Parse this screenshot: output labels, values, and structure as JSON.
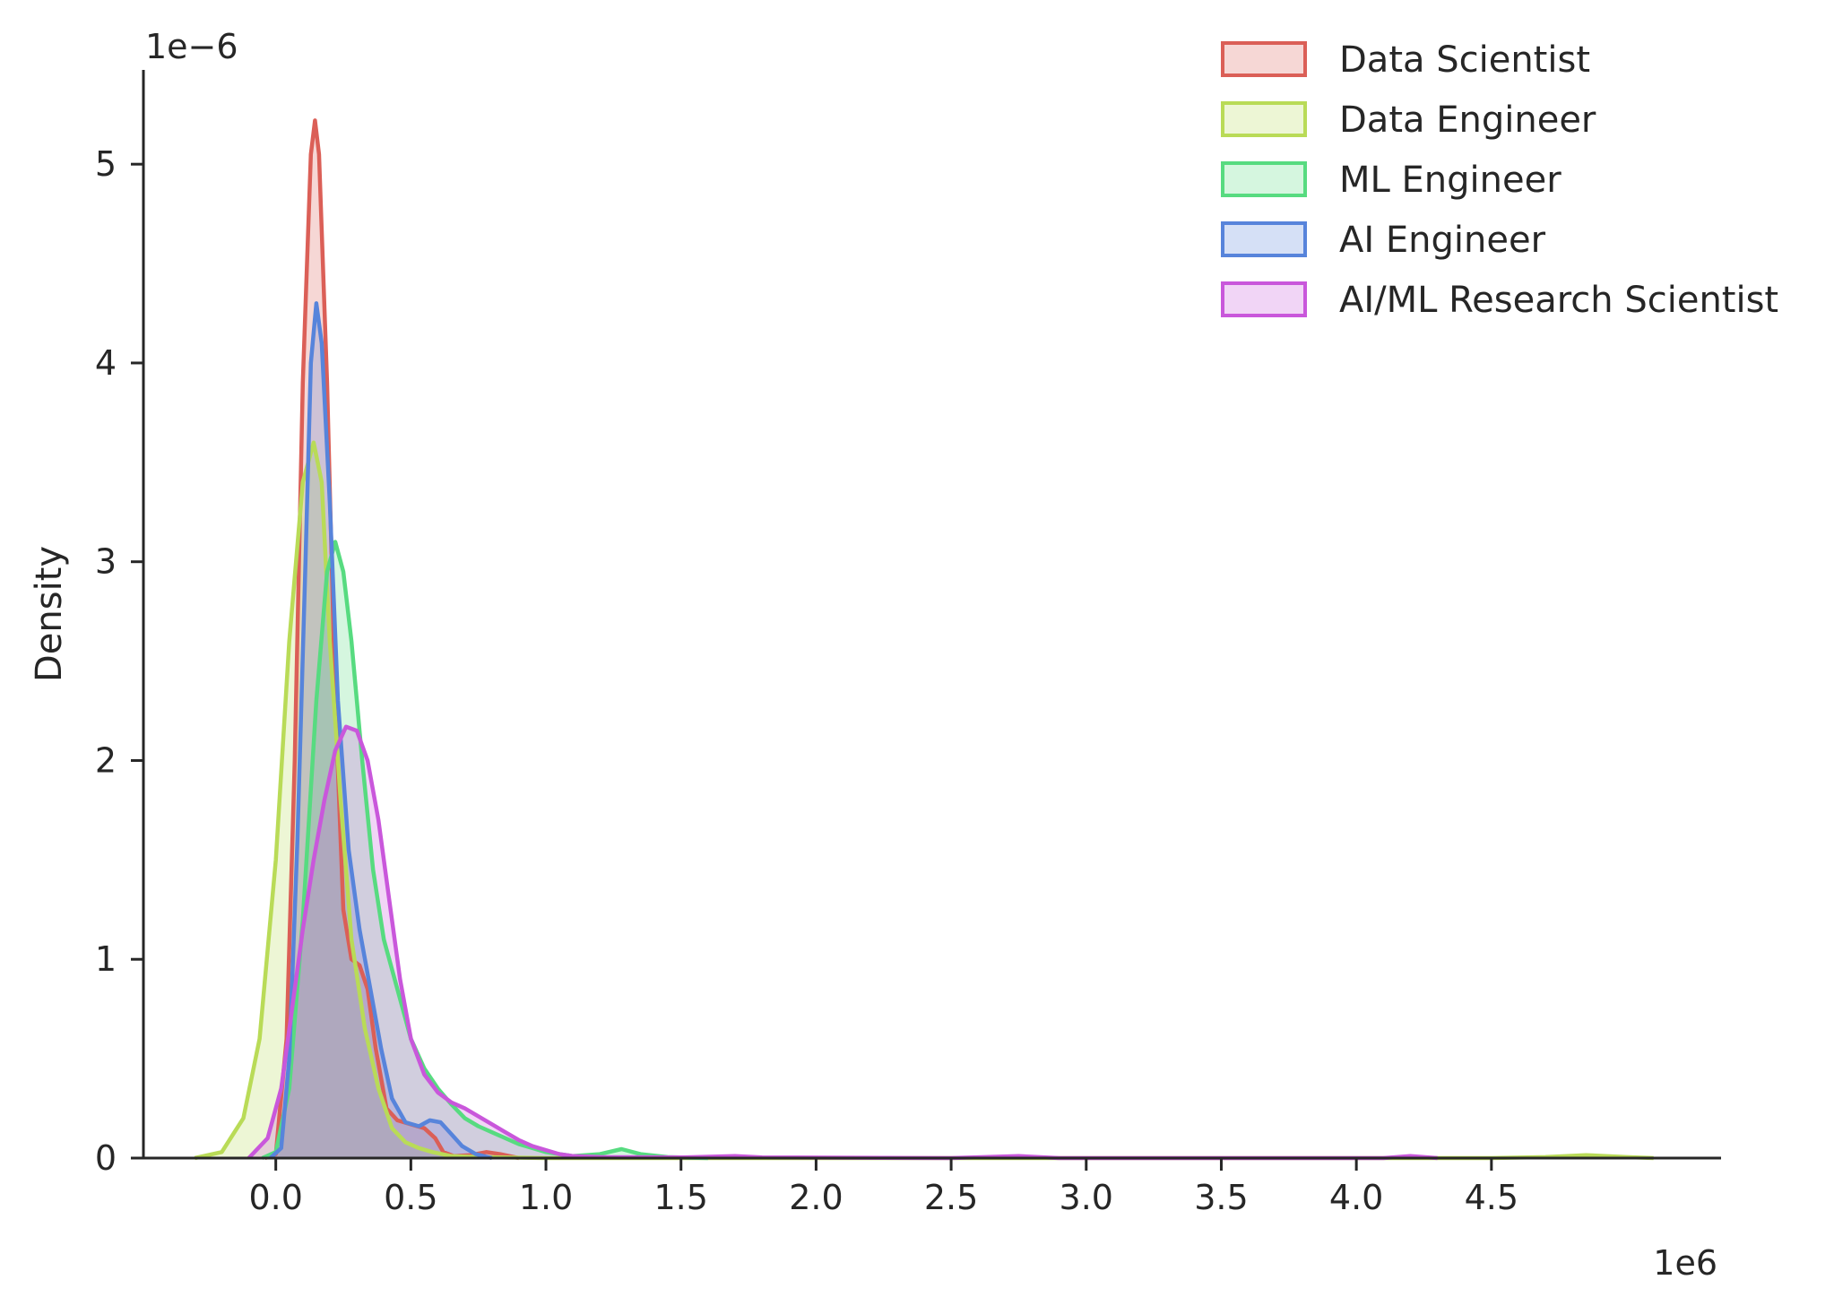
{
  "chart_data": {
    "type": "area",
    "subtype": "kde",
    "xlabel": "",
    "ylabel": "Density",
    "x_offset_label": "1e6",
    "y_offset_label": "1e−6",
    "x_scale": 1000000,
    "y_scale": 1e-06,
    "xlim": [
      -0.49,
      5.35
    ],
    "ylim": [
      0,
      5.5
    ],
    "x_ticks": [
      0,
      0.5,
      1.0,
      1.5,
      2.0,
      2.5,
      3.0,
      3.5,
      4.0,
      4.5
    ],
    "x_tick_labels": [
      "0.0",
      "0.5",
      "1.0",
      "1.5",
      "2.0",
      "2.5",
      "3.0",
      "3.5",
      "4.0",
      "4.5"
    ],
    "y_ticks": [
      0,
      1,
      2,
      3,
      4,
      5
    ],
    "y_tick_labels": [
      "0",
      "1",
      "2",
      "3",
      "4",
      "5"
    ],
    "grid": false,
    "legend_position": "top-right",
    "series": [
      {
        "name": "Data Scientist",
        "color": "#db5f57",
        "points": [
          [
            -0.04,
            0
          ],
          [
            0.0,
            0.02
          ],
          [
            0.04,
            0.6
          ],
          [
            0.07,
            2.0
          ],
          [
            0.1,
            3.9
          ],
          [
            0.13,
            5.05
          ],
          [
            0.145,
            5.22
          ],
          [
            0.16,
            5.05
          ],
          [
            0.19,
            3.9
          ],
          [
            0.22,
            2.3
          ],
          [
            0.25,
            1.25
          ],
          [
            0.28,
            1.0
          ],
          [
            0.31,
            0.97
          ],
          [
            0.34,
            0.85
          ],
          [
            0.37,
            0.55
          ],
          [
            0.41,
            0.25
          ],
          [
            0.45,
            0.19
          ],
          [
            0.5,
            0.17
          ],
          [
            0.55,
            0.15
          ],
          [
            0.59,
            0.1
          ],
          [
            0.62,
            0.03
          ],
          [
            0.66,
            0.01
          ],
          [
            0.72,
            0.015
          ],
          [
            0.78,
            0.03
          ],
          [
            0.83,
            0.02
          ],
          [
            0.9,
            0
          ]
        ]
      },
      {
        "name": "Data Engineer",
        "color": "#b9db57",
        "points": [
          [
            -0.3,
            0
          ],
          [
            -0.2,
            0.03
          ],
          [
            -0.12,
            0.2
          ],
          [
            -0.06,
            0.6
          ],
          [
            0.0,
            1.5
          ],
          [
            0.05,
            2.6
          ],
          [
            0.1,
            3.4
          ],
          [
            0.14,
            3.6
          ],
          [
            0.17,
            3.4
          ],
          [
            0.2,
            2.6
          ],
          [
            0.24,
            1.8
          ],
          [
            0.28,
            1.1
          ],
          [
            0.33,
            0.65
          ],
          [
            0.38,
            0.35
          ],
          [
            0.43,
            0.15
          ],
          [
            0.48,
            0.08
          ],
          [
            0.53,
            0.05
          ],
          [
            0.58,
            0.03
          ],
          [
            0.65,
            0.01
          ],
          [
            0.75,
            0.005
          ],
          [
            1.0,
            0
          ],
          [
            4.5,
            0
          ],
          [
            4.7,
            0.005
          ],
          [
            4.85,
            0.015
          ],
          [
            5.0,
            0.005
          ],
          [
            5.1,
            0
          ]
        ]
      },
      {
        "name": "ML Engineer",
        "color": "#57db80",
        "points": [
          [
            -0.05,
            0
          ],
          [
            0.0,
            0.03
          ],
          [
            0.05,
            0.35
          ],
          [
            0.1,
            1.2
          ],
          [
            0.15,
            2.3
          ],
          [
            0.19,
            2.95
          ],
          [
            0.22,
            3.1
          ],
          [
            0.25,
            2.95
          ],
          [
            0.28,
            2.6
          ],
          [
            0.32,
            2.0
          ],
          [
            0.36,
            1.45
          ],
          [
            0.4,
            1.1
          ],
          [
            0.45,
            0.85
          ],
          [
            0.5,
            0.6
          ],
          [
            0.55,
            0.45
          ],
          [
            0.6,
            0.35
          ],
          [
            0.65,
            0.27
          ],
          [
            0.7,
            0.2
          ],
          [
            0.75,
            0.16
          ],
          [
            0.8,
            0.13
          ],
          [
            0.85,
            0.1
          ],
          [
            0.9,
            0.07
          ],
          [
            0.95,
            0.05
          ],
          [
            1.0,
            0.03
          ],
          [
            1.05,
            0.02
          ],
          [
            1.1,
            0.01
          ],
          [
            1.2,
            0.02
          ],
          [
            1.28,
            0.045
          ],
          [
            1.35,
            0.02
          ],
          [
            1.45,
            0.005
          ],
          [
            1.6,
            0
          ]
        ]
      },
      {
        "name": "AI Engineer",
        "color": "#5784db",
        "points": [
          [
            -0.02,
            0
          ],
          [
            0.02,
            0.05
          ],
          [
            0.05,
            0.5
          ],
          [
            0.08,
            1.6
          ],
          [
            0.11,
            3.0
          ],
          [
            0.13,
            4.0
          ],
          [
            0.15,
            4.3
          ],
          [
            0.17,
            4.1
          ],
          [
            0.2,
            3.3
          ],
          [
            0.23,
            2.3
          ],
          [
            0.27,
            1.55
          ],
          [
            0.31,
            1.15
          ],
          [
            0.35,
            0.85
          ],
          [
            0.39,
            0.55
          ],
          [
            0.43,
            0.3
          ],
          [
            0.48,
            0.18
          ],
          [
            0.53,
            0.16
          ],
          [
            0.57,
            0.19
          ],
          [
            0.61,
            0.18
          ],
          [
            0.65,
            0.12
          ],
          [
            0.69,
            0.06
          ],
          [
            0.74,
            0.02
          ],
          [
            0.8,
            0
          ]
        ]
      },
      {
        "name": "AI/ML Research Scientist",
        "color": "#c957db",
        "points": [
          [
            -0.1,
            0
          ],
          [
            -0.03,
            0.1
          ],
          [
            0.02,
            0.35
          ],
          [
            0.06,
            0.75
          ],
          [
            0.1,
            1.15
          ],
          [
            0.14,
            1.5
          ],
          [
            0.18,
            1.8
          ],
          [
            0.22,
            2.05
          ],
          [
            0.26,
            2.17
          ],
          [
            0.3,
            2.15
          ],
          [
            0.34,
            2.0
          ],
          [
            0.38,
            1.7
          ],
          [
            0.42,
            1.3
          ],
          [
            0.46,
            0.9
          ],
          [
            0.5,
            0.6
          ],
          [
            0.55,
            0.42
          ],
          [
            0.6,
            0.33
          ],
          [
            0.65,
            0.28
          ],
          [
            0.7,
            0.25
          ],
          [
            0.75,
            0.21
          ],
          [
            0.8,
            0.17
          ],
          [
            0.85,
            0.13
          ],
          [
            0.9,
            0.09
          ],
          [
            0.95,
            0.06
          ],
          [
            1.0,
            0.04
          ],
          [
            1.05,
            0.02
          ],
          [
            1.1,
            0.01
          ],
          [
            1.2,
            0.005
          ],
          [
            1.5,
            0.003
          ],
          [
            1.7,
            0.01
          ],
          [
            1.8,
            0.003
          ],
          [
            2.5,
            0
          ],
          [
            2.75,
            0.01
          ],
          [
            2.9,
            0
          ],
          [
            4.1,
            0
          ],
          [
            4.2,
            0.01
          ],
          [
            4.3,
            0
          ]
        ]
      }
    ]
  }
}
